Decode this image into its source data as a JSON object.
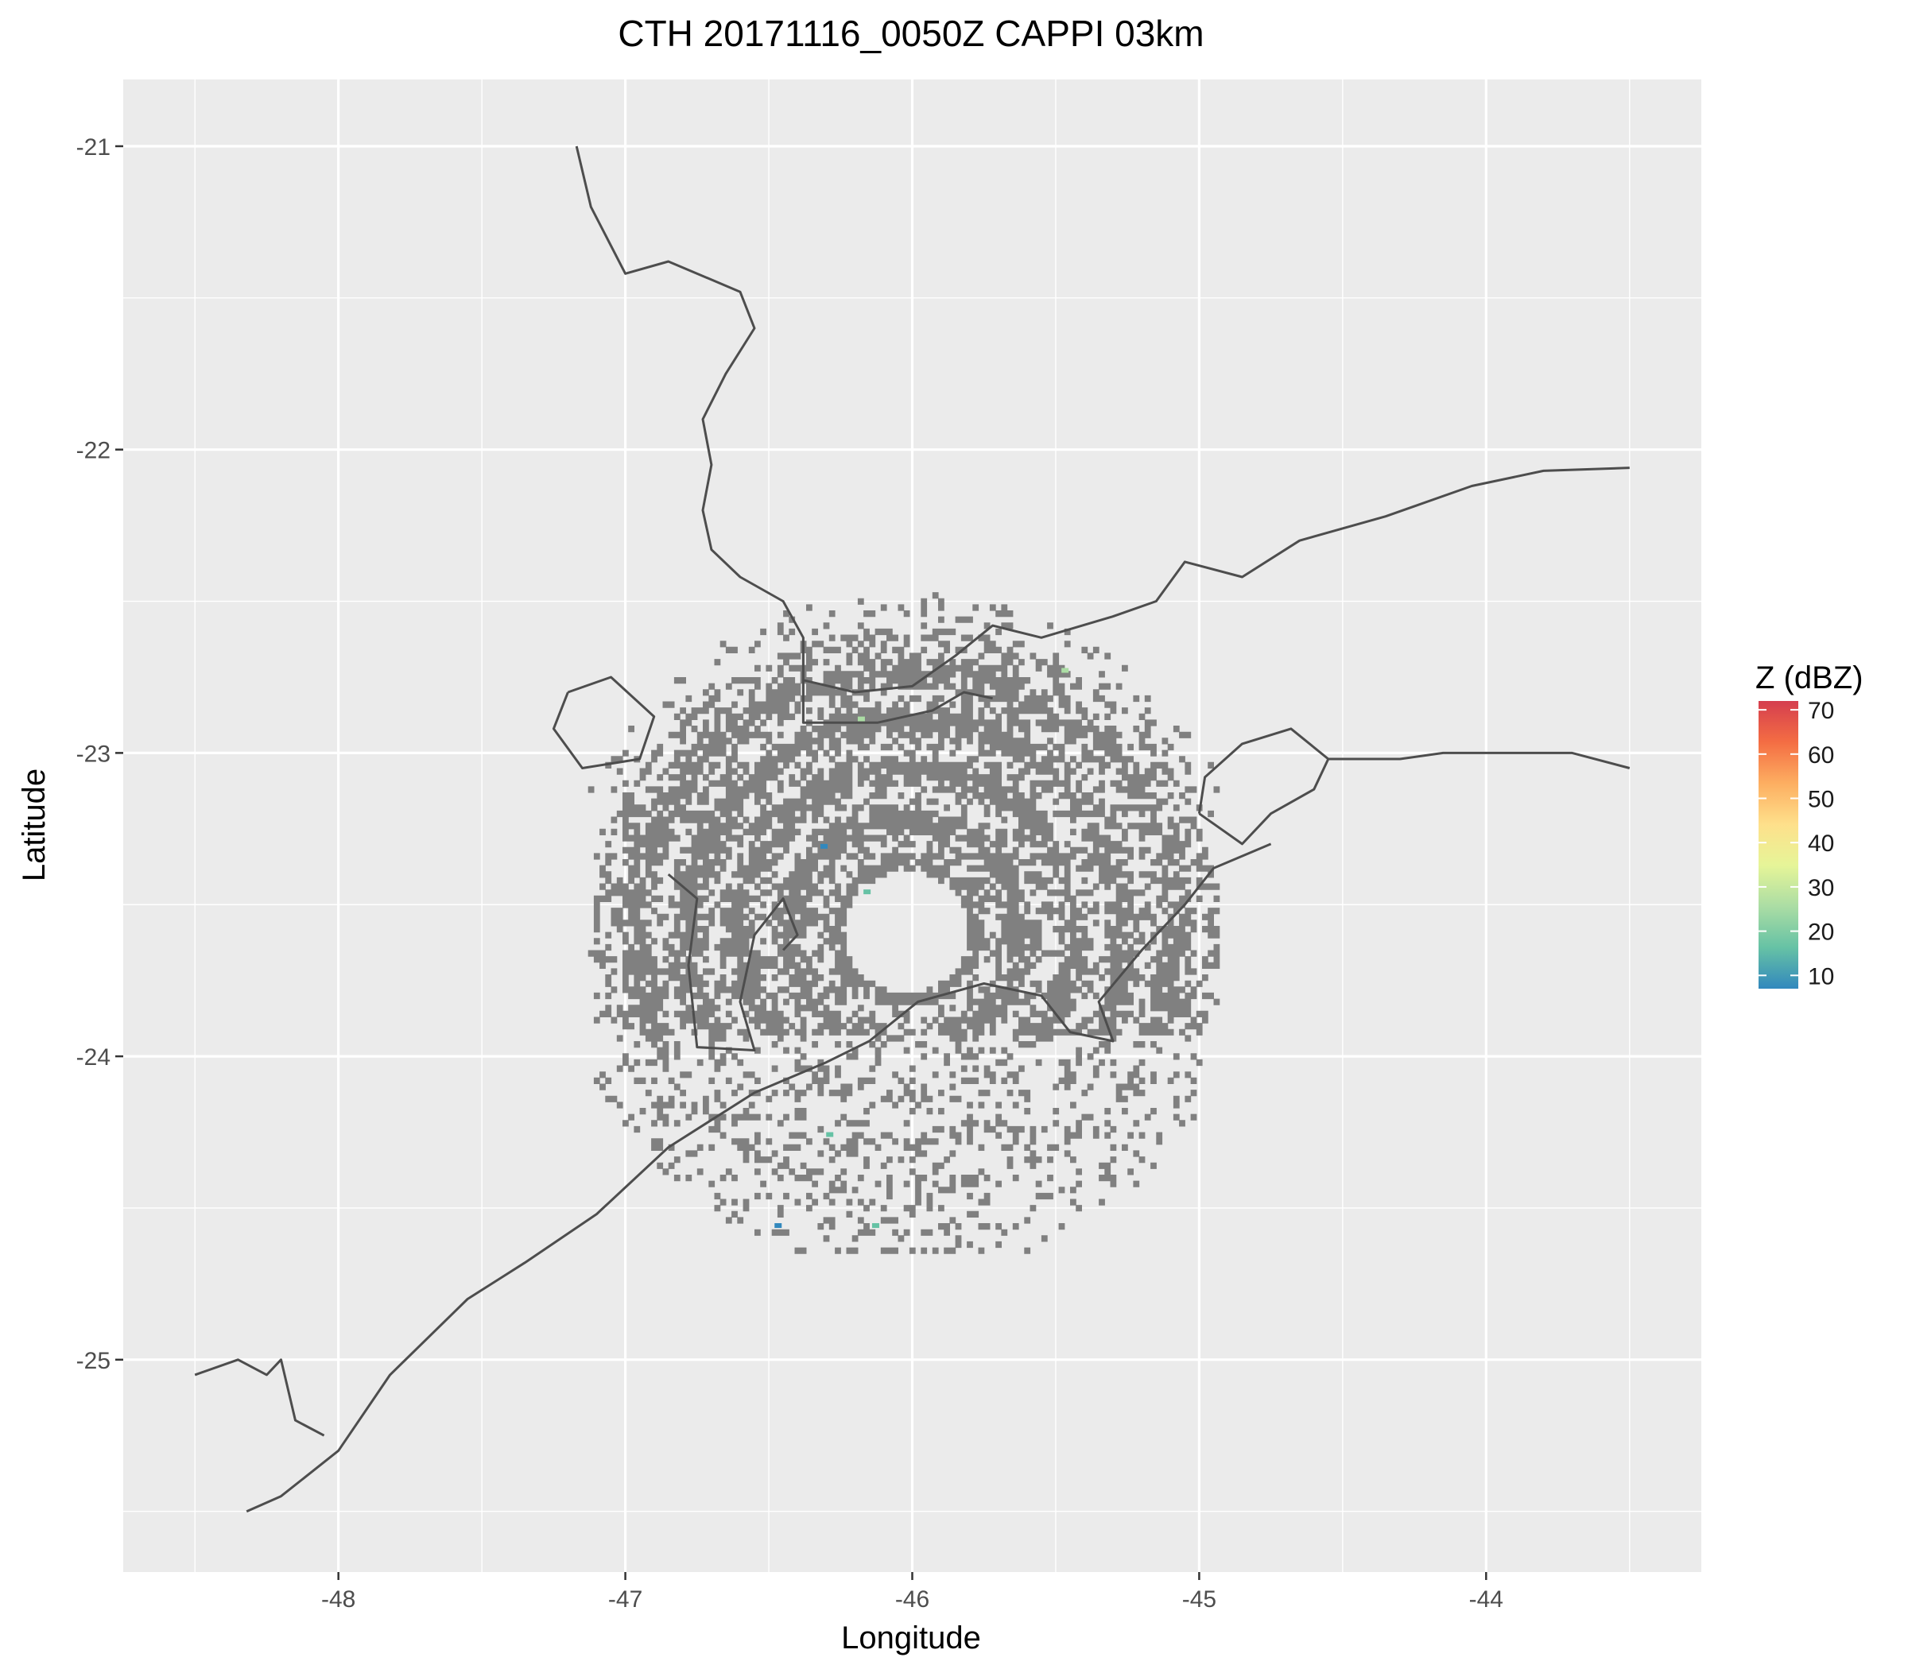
{
  "title": "CTH 20171116_0050Z  CAPPI 03km",
  "x_axis": {
    "label": "Longitude",
    "range": [
      -48.75,
      -43.25
    ],
    "ticks": [
      -48,
      -47,
      -46,
      -45,
      -44
    ],
    "tick_labels": [
      "-48",
      "-47",
      "-46",
      "-45",
      "-44"
    ]
  },
  "y_axis": {
    "label": "Latitude",
    "range": [
      -25.7,
      -20.78
    ],
    "ticks": [
      -25,
      -24,
      -23,
      -22,
      -21
    ],
    "tick_labels": [
      "-25",
      "-24",
      "-23",
      "-22",
      "-21"
    ]
  },
  "legend": {
    "title": "Z (dBZ)",
    "labels": [
      "70",
      "60",
      "50",
      "40",
      "30",
      "20",
      "10"
    ],
    "colors": [
      "#d53e4f",
      "#f46d43",
      "#fdae61",
      "#fee08b",
      "#e6f598",
      "#abdda4",
      "#66c2a5",
      "#3288bd"
    ],
    "range": [
      7,
      72
    ]
  },
  "colors": {
    "panel": "#ebebeb",
    "grid": "#ffffff",
    "boundary": "#4d4d4d",
    "echo": "#808080"
  },
  "chart_data": {
    "type": "heatmap",
    "radar_center": [
      -46.03,
      -23.6
    ],
    "echo_ring_radii_deg": [
      0.2,
      1.0
    ],
    "boundaries": [
      [
        [
          -47.17,
          -21.0
        ],
        [
          -47.12,
          -21.2
        ],
        [
          -47.0,
          -21.42
        ],
        [
          -46.85,
          -21.38
        ],
        [
          -46.6,
          -21.48
        ],
        [
          -46.55,
          -21.6
        ],
        [
          -46.65,
          -21.75
        ],
        [
          -46.73,
          -21.9
        ],
        [
          -46.7,
          -22.05
        ],
        [
          -46.73,
          -22.2
        ],
        [
          -46.7,
          -22.33
        ],
        [
          -46.6,
          -22.42
        ],
        [
          -46.45,
          -22.5
        ],
        [
          -46.38,
          -22.62
        ],
        [
          -46.38,
          -22.76
        ],
        [
          -46.2,
          -22.8
        ],
        [
          -46.0,
          -22.78
        ],
        [
          -45.85,
          -22.68
        ],
        [
          -45.72,
          -22.58
        ],
        [
          -45.55,
          -22.62
        ],
        [
          -45.3,
          -22.55
        ],
        [
          -45.15,
          -22.5
        ],
        [
          -45.05,
          -22.37
        ],
        [
          -44.85,
          -22.42
        ],
        [
          -44.65,
          -22.3
        ],
        [
          -44.35,
          -22.22
        ],
        [
          -44.05,
          -22.12
        ],
        [
          -43.8,
          -22.07
        ],
        [
          -43.5,
          -22.06
        ]
      ],
      [
        [
          -46.38,
          -22.76
        ],
        [
          -46.38,
          -22.9
        ],
        [
          -46.12,
          -22.9
        ],
        [
          -45.93,
          -22.86
        ],
        [
          -45.82,
          -22.8
        ],
        [
          -45.72,
          -22.82
        ]
      ],
      [
        [
          -47.2,
          -22.8
        ],
        [
          -47.05,
          -22.75
        ],
        [
          -46.9,
          -22.88
        ],
        [
          -46.95,
          -23.02
        ],
        [
          -47.15,
          -23.05
        ],
        [
          -47.25,
          -22.92
        ],
        [
          -47.2,
          -22.8
        ]
      ],
      [
        [
          -45.0,
          -23.2
        ],
        [
          -44.98,
          -23.08
        ],
        [
          -44.85,
          -22.97
        ],
        [
          -44.68,
          -22.92
        ],
        [
          -44.55,
          -23.02
        ],
        [
          -44.6,
          -23.12
        ],
        [
          -44.75,
          -23.2
        ],
        [
          -44.85,
          -23.3
        ],
        [
          -45.0,
          -23.2
        ]
      ],
      [
        [
          -44.55,
          -23.02
        ],
        [
          -44.3,
          -23.02
        ],
        [
          -44.15,
          -23.0
        ],
        [
          -43.9,
          -23.0
        ],
        [
          -43.7,
          -23.0
        ],
        [
          -43.5,
          -23.05
        ]
      ],
      [
        [
          -46.85,
          -23.4
        ],
        [
          -46.75,
          -23.48
        ],
        [
          -46.78,
          -23.7
        ],
        [
          -46.75,
          -23.97
        ],
        [
          -46.55,
          -23.98
        ],
        [
          -46.6,
          -23.82
        ],
        [
          -46.55,
          -23.6
        ],
        [
          -46.45,
          -23.48
        ],
        [
          -46.4,
          -23.6
        ],
        [
          -46.45,
          -23.65
        ]
      ],
      [
        [
          -48.5,
          -25.05
        ],
        [
          -48.35,
          -25.0
        ],
        [
          -48.25,
          -25.05
        ],
        [
          -48.2,
          -25.0
        ],
        [
          -48.15,
          -25.2
        ],
        [
          -48.05,
          -25.25
        ]
      ],
      [
        [
          -48.32,
          -25.5
        ],
        [
          -48.2,
          -25.45
        ],
        [
          -48.0,
          -25.3
        ],
        [
          -47.82,
          -25.05
        ],
        [
          -47.55,
          -24.8
        ],
        [
          -47.35,
          -24.68
        ],
        [
          -47.1,
          -24.52
        ],
        [
          -46.85,
          -24.3
        ],
        [
          -46.55,
          -24.12
        ],
        [
          -46.3,
          -24.02
        ],
        [
          -46.15,
          -23.95
        ],
        [
          -45.98,
          -23.82
        ],
        [
          -45.75,
          -23.76
        ],
        [
          -45.55,
          -23.8
        ],
        [
          -45.45,
          -23.92
        ],
        [
          -45.3,
          -23.95
        ],
        [
          -45.35,
          -23.82
        ],
        [
          -45.2,
          -23.65
        ],
        [
          -45.05,
          -23.5
        ],
        [
          -44.95,
          -23.38
        ],
        [
          -44.75,
          -23.3
        ]
      ]
    ],
    "colored_pixels": [
      [
        -46.19,
        -22.88,
        25
      ],
      [
        -45.48,
        -22.72,
        25
      ],
      [
        -46.32,
        -23.3,
        10
      ],
      [
        -46.17,
        -23.45,
        12
      ],
      [
        -46.48,
        -24.55,
        10
      ],
      [
        -46.14,
        -24.55,
        20
      ],
      [
        -46.3,
        -24.25,
        15
      ]
    ]
  }
}
